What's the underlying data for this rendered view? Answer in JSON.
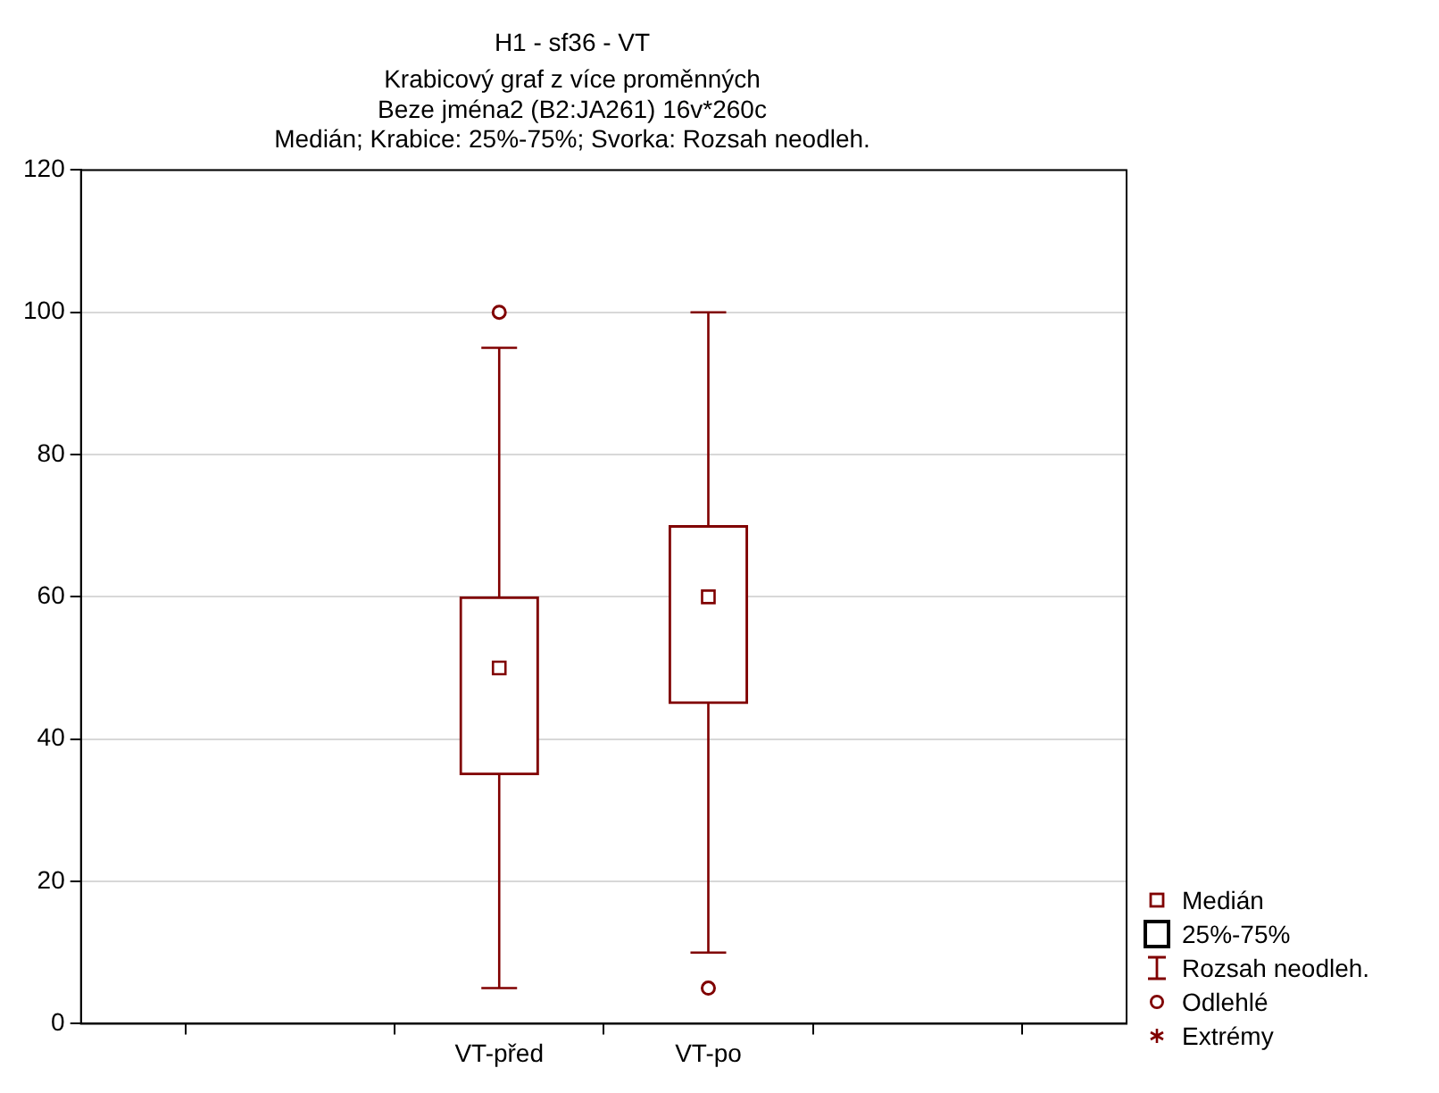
{
  "chart_data": {
    "type": "box",
    "title": "H1 - sf36 - VT",
    "subtitle": "Krabicový graf z více proměnných\nBeze jména2 (B2:JA261) 16v*260c\nMedián; Krabice: 25%-75%; Svorka: Rozsah neodleh.",
    "categories": [
      null,
      null,
      "VT-před",
      "VT-po",
      null,
      null
    ],
    "boxes": [
      null,
      null,
      {
        "low": 5,
        "q1": 35,
        "median": 50,
        "q3": 60,
        "high": 95,
        "outliers": [
          100
        ]
      },
      {
        "low": 10,
        "q1": 45,
        "median": 60,
        "q3": 70,
        "high": 100,
        "outliers": [
          5
        ]
      },
      null,
      null
    ],
    "color": "#800000",
    "ylim": [
      0,
      120
    ],
    "yticks": [
      0,
      20,
      40,
      60,
      80,
      100,
      120
    ],
    "grid": "y",
    "annotations": [
      "Medián",
      "25%-75%",
      "Rozsah neodleh.",
      "Odlehlé",
      "Extrémy"
    ]
  }
}
